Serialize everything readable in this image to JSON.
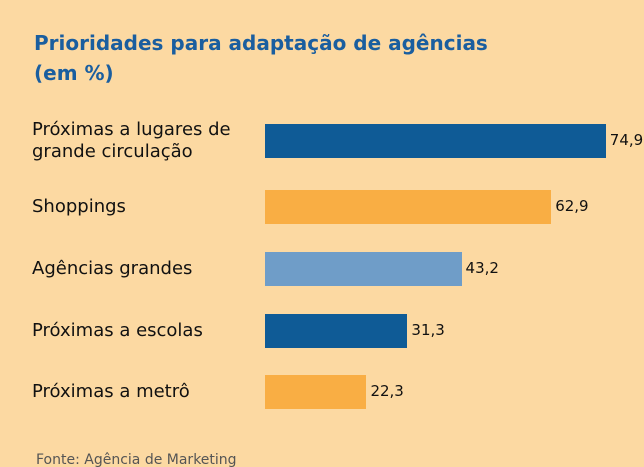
{
  "chart_data": {
    "type": "bar",
    "orientation": "horizontal",
    "title": "Prioridades para adaptação de agências",
    "subtitle": "(em %)",
    "categories": [
      "Próximas a lugares de grande circulação",
      "Shoppings",
      "Agências grandes",
      "Próximas a escolas",
      "Próximas a metrô"
    ],
    "values": [
      74.9,
      62.9,
      43.2,
      31.3,
      22.3
    ],
    "value_labels": [
      "74,9",
      "62,9",
      "43,2",
      "31,3",
      "22,3"
    ],
    "colors": [
      "#0f5b96",
      "#f9ae44",
      "#6f9dc8",
      "#0f5b96",
      "#f9ae44"
    ],
    "source": "Fonte: Agência de Marketing"
  }
}
